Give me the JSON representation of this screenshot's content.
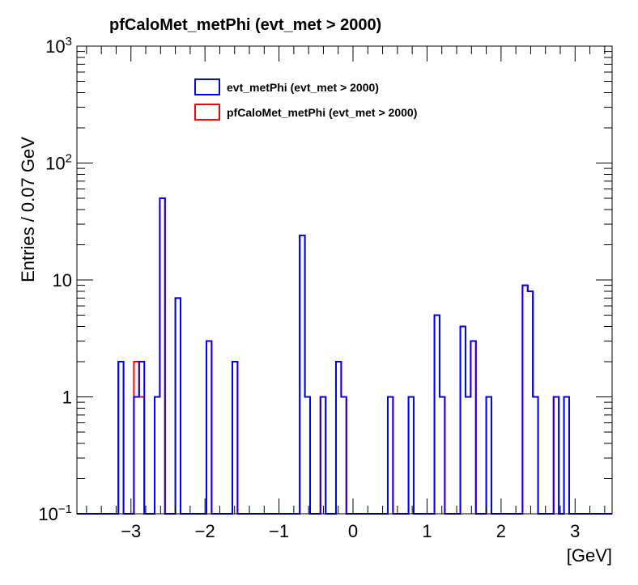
{
  "chart_data": {
    "type": "histogram",
    "title": "pfCaloMet_metPhi (evt_met > 2000)",
    "xlabel": "[GeV]",
    "ylabel": "Entries / 0.07 GeV",
    "xlim": [
      -3.73,
      3.5
    ],
    "ylim": [
      0.1,
      1000
    ],
    "log_y": true,
    "grid": false,
    "bin_width": 0.07,
    "x_ticks": [
      {
        "value": -3,
        "label": "−3"
      },
      {
        "value": -2,
        "label": "−2"
      },
      {
        "value": -1,
        "label": "−1"
      },
      {
        "value": 0,
        "label": "0"
      },
      {
        "value": 1,
        "label": "1"
      },
      {
        "value": 2,
        "label": "2"
      },
      {
        "value": 3,
        "label": "3"
      }
    ],
    "y_ticks": [
      {
        "value": 1000,
        "base": "10",
        "exp": "3"
      },
      {
        "value": 100,
        "base": "10",
        "exp": "2"
      },
      {
        "value": 10,
        "base": "10",
        "exp": ""
      },
      {
        "value": 1,
        "base": "1",
        "exp": ""
      },
      {
        "value": 0.1,
        "base": "10",
        "exp": "−1"
      }
    ],
    "legend": {
      "position": "top-left"
    },
    "series": [
      {
        "name": "evt_metPhi (evt_met > 2000)",
        "color": "#0000ff",
        "bins": [
          {
            "x": -3.15,
            "y": 2
          },
          {
            "x": -2.94,
            "y": 1
          },
          {
            "x": -2.87,
            "y": 2
          },
          {
            "x": -2.66,
            "y": 1
          },
          {
            "x": -2.59,
            "y": 50
          },
          {
            "x": -2.38,
            "y": 7
          },
          {
            "x": -1.96,
            "y": 3
          },
          {
            "x": -1.82,
            "y": 0
          },
          {
            "x": -1.61,
            "y": 2
          },
          {
            "x": -0.7,
            "y": 24
          },
          {
            "x": -0.63,
            "y": 1
          },
          {
            "x": -0.42,
            "y": 1
          },
          {
            "x": -0.21,
            "y": 2
          },
          {
            "x": -0.14,
            "y": 1
          },
          {
            "x": 0.49,
            "y": 1
          },
          {
            "x": 0.77,
            "y": 1
          },
          {
            "x": 1.12,
            "y": 5
          },
          {
            "x": 1.19,
            "y": 1
          },
          {
            "x": 1.47,
            "y": 4
          },
          {
            "x": 1.54,
            "y": 1
          },
          {
            "x": 1.61,
            "y": 3
          },
          {
            "x": 1.82,
            "y": 1
          },
          {
            "x": 2.31,
            "y": 9
          },
          {
            "x": 2.38,
            "y": 8
          },
          {
            "x": 2.45,
            "y": 1
          },
          {
            "x": 2.73,
            "y": 1
          },
          {
            "x": 2.87,
            "y": 1
          }
        ]
      },
      {
        "name": "pfCaloMet_metPhi (evt_met > 2000)",
        "color": "#ff0000",
        "bins": [
          {
            "x": -3.15,
            "y": 2
          },
          {
            "x": -2.94,
            "y": 2
          },
          {
            "x": -2.87,
            "y": 1
          },
          {
            "x": -2.66,
            "y": 1
          },
          {
            "x": -2.59,
            "y": 50
          },
          {
            "x": -2.38,
            "y": 7
          },
          {
            "x": -1.96,
            "y": 3
          },
          {
            "x": -1.82,
            "y": 0
          },
          {
            "x": -1.61,
            "y": 2
          },
          {
            "x": -0.7,
            "y": 24
          },
          {
            "x": -0.63,
            "y": 1
          },
          {
            "x": -0.42,
            "y": 1
          },
          {
            "x": -0.21,
            "y": 2
          },
          {
            "x": -0.14,
            "y": 1
          },
          {
            "x": 0.49,
            "y": 1
          },
          {
            "x": 0.77,
            "y": 1
          },
          {
            "x": 1.12,
            "y": 5
          },
          {
            "x": 1.19,
            "y": 1
          },
          {
            "x": 1.47,
            "y": 4
          },
          {
            "x": 1.54,
            "y": 1
          },
          {
            "x": 1.61,
            "y": 3
          },
          {
            "x": 1.82,
            "y": 1
          },
          {
            "x": 2.31,
            "y": 9
          },
          {
            "x": 2.38,
            "y": 8
          },
          {
            "x": 2.45,
            "y": 1
          },
          {
            "x": 2.73,
            "y": 1
          },
          {
            "x": 2.87,
            "y": 1
          }
        ]
      }
    ]
  }
}
